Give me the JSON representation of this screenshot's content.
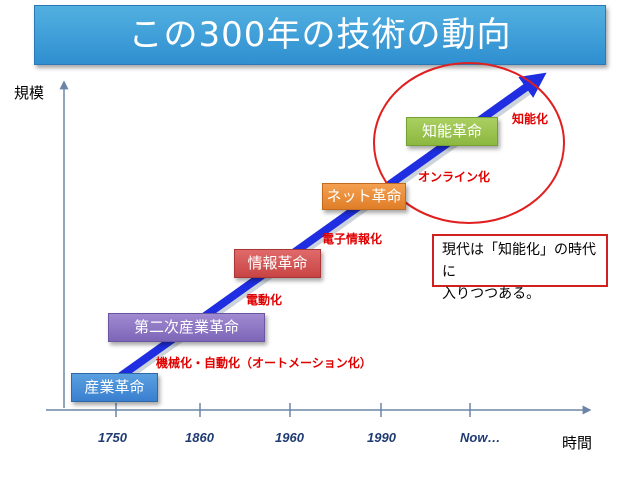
{
  "title": "この300年の技術の動向",
  "y_axis_label": "規模",
  "x_axis_label": "時間",
  "x_ticks": [
    "1750",
    "1860",
    "1960",
    "1990",
    "Now…"
  ],
  "stages": [
    "産業革命",
    "第二次産業革命",
    "情報革命",
    "ネット革命",
    "知能革命"
  ],
  "transitions": [
    "機械化・自動化（オートメーション化）",
    "電動化",
    "電子情報化",
    "オンライン化",
    "知能化"
  ],
  "note": {
    "line1": "現代は「知能化」の時代に",
    "line2": "入りつつある。"
  },
  "colors": {
    "title_bg": "#3b9ad8",
    "arrow": "#1f2ee0",
    "highlight": "#e02020",
    "transition_text": "#e00000"
  }
}
